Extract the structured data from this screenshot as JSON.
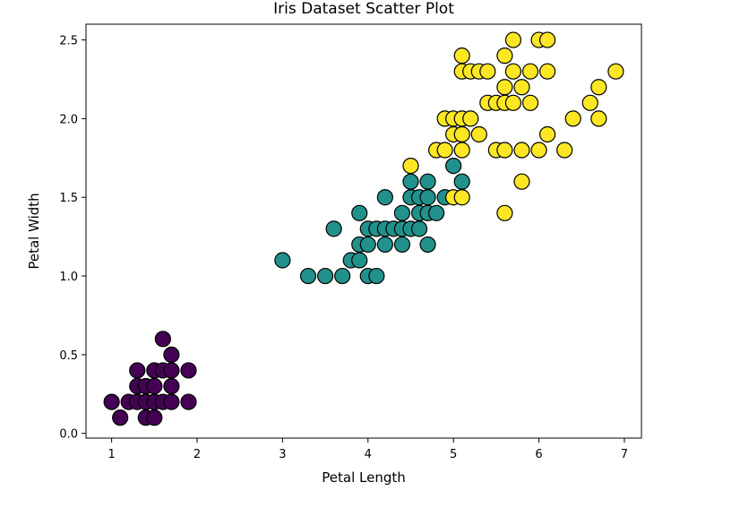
{
  "chart_data": {
    "type": "scatter",
    "title": "Iris Dataset Scatter Plot",
    "xlabel": "Petal Length",
    "ylabel": "Petal Width",
    "xlim": [
      0.7,
      7.2
    ],
    "ylim": [
      -0.03,
      2.6
    ],
    "xticks": [
      1,
      2,
      3,
      4,
      5,
      6,
      7
    ],
    "xtick_labels": [
      "1",
      "2",
      "3",
      "4",
      "5",
      "6",
      "7"
    ],
    "yticks": [
      0.0,
      0.5,
      1.0,
      1.5,
      2.0,
      2.5
    ],
    "ytick_labels": [
      "0.0",
      "0.5",
      "1.0",
      "1.5",
      "2.0",
      "2.5"
    ],
    "grid": false,
    "marker_edge_color": "#000000",
    "series": [
      {
        "color": "#440154",
        "points": [
          [
            1.0,
            0.2
          ],
          [
            1.1,
            0.1
          ],
          [
            1.2,
            0.2
          ],
          [
            1.3,
            0.2
          ],
          [
            1.3,
            0.3
          ],
          [
            1.3,
            0.4
          ],
          [
            1.4,
            0.1
          ],
          [
            1.4,
            0.2
          ],
          [
            1.4,
            0.3
          ],
          [
            1.5,
            0.1
          ],
          [
            1.5,
            0.2
          ],
          [
            1.5,
            0.3
          ],
          [
            1.5,
            0.4
          ],
          [
            1.6,
            0.2
          ],
          [
            1.6,
            0.4
          ],
          [
            1.6,
            0.6
          ],
          [
            1.7,
            0.2
          ],
          [
            1.7,
            0.3
          ],
          [
            1.7,
            0.4
          ],
          [
            1.7,
            0.5
          ],
          [
            1.9,
            0.2
          ],
          [
            1.9,
            0.4
          ]
        ]
      },
      {
        "color": "#21918c",
        "points": [
          [
            3.0,
            1.1
          ],
          [
            3.3,
            1.0
          ],
          [
            3.5,
            1.0
          ],
          [
            3.6,
            1.3
          ],
          [
            3.7,
            1.0
          ],
          [
            3.8,
            1.1
          ],
          [
            3.9,
            1.1
          ],
          [
            3.9,
            1.2
          ],
          [
            3.9,
            1.4
          ],
          [
            4.0,
            1.0
          ],
          [
            4.0,
            1.2
          ],
          [
            4.0,
            1.3
          ],
          [
            4.1,
            1.0
          ],
          [
            4.1,
            1.3
          ],
          [
            4.2,
            1.2
          ],
          [
            4.2,
            1.3
          ],
          [
            4.2,
            1.5
          ],
          [
            4.3,
            1.3
          ],
          [
            4.4,
            1.2
          ],
          [
            4.4,
            1.3
          ],
          [
            4.4,
            1.4
          ],
          [
            4.5,
            1.3
          ],
          [
            4.5,
            1.5
          ],
          [
            4.5,
            1.6
          ],
          [
            4.6,
            1.3
          ],
          [
            4.6,
            1.4
          ],
          [
            4.6,
            1.5
          ],
          [
            4.7,
            1.2
          ],
          [
            4.7,
            1.4
          ],
          [
            4.7,
            1.5
          ],
          [
            4.7,
            1.6
          ],
          [
            4.8,
            1.4
          ],
          [
            4.9,
            1.5
          ],
          [
            5.0,
            1.7
          ],
          [
            5.1,
            1.6
          ]
        ]
      },
      {
        "color": "#fde725",
        "points": [
          [
            4.5,
            1.7
          ],
          [
            4.8,
            1.8
          ],
          [
            4.9,
            1.8
          ],
          [
            4.9,
            2.0
          ],
          [
            5.0,
            1.5
          ],
          [
            5.0,
            1.9
          ],
          [
            5.0,
            2.0
          ],
          [
            5.1,
            1.5
          ],
          [
            5.1,
            1.8
          ],
          [
            5.1,
            1.9
          ],
          [
            5.1,
            2.0
          ],
          [
            5.1,
            2.3
          ],
          [
            5.1,
            2.4
          ],
          [
            5.2,
            2.0
          ],
          [
            5.2,
            2.3
          ],
          [
            5.3,
            1.9
          ],
          [
            5.3,
            2.3
          ],
          [
            5.4,
            2.1
          ],
          [
            5.4,
            2.3
          ],
          [
            5.5,
            1.8
          ],
          [
            5.5,
            2.1
          ],
          [
            5.6,
            1.4
          ],
          [
            5.6,
            1.8
          ],
          [
            5.6,
            2.1
          ],
          [
            5.6,
            2.2
          ],
          [
            5.6,
            2.4
          ],
          [
            5.7,
            2.1
          ],
          [
            5.7,
            2.3
          ],
          [
            5.7,
            2.5
          ],
          [
            5.8,
            1.6
          ],
          [
            5.8,
            1.8
          ],
          [
            5.8,
            2.2
          ],
          [
            5.9,
            2.1
          ],
          [
            5.9,
            2.3
          ],
          [
            6.0,
            1.8
          ],
          [
            6.0,
            2.5
          ],
          [
            6.1,
            1.9
          ],
          [
            6.1,
            2.3
          ],
          [
            6.1,
            2.5
          ],
          [
            6.3,
            1.8
          ],
          [
            6.4,
            2.0
          ],
          [
            6.6,
            2.1
          ],
          [
            6.7,
            2.0
          ],
          [
            6.7,
            2.2
          ],
          [
            6.9,
            2.3
          ]
        ]
      }
    ]
  }
}
